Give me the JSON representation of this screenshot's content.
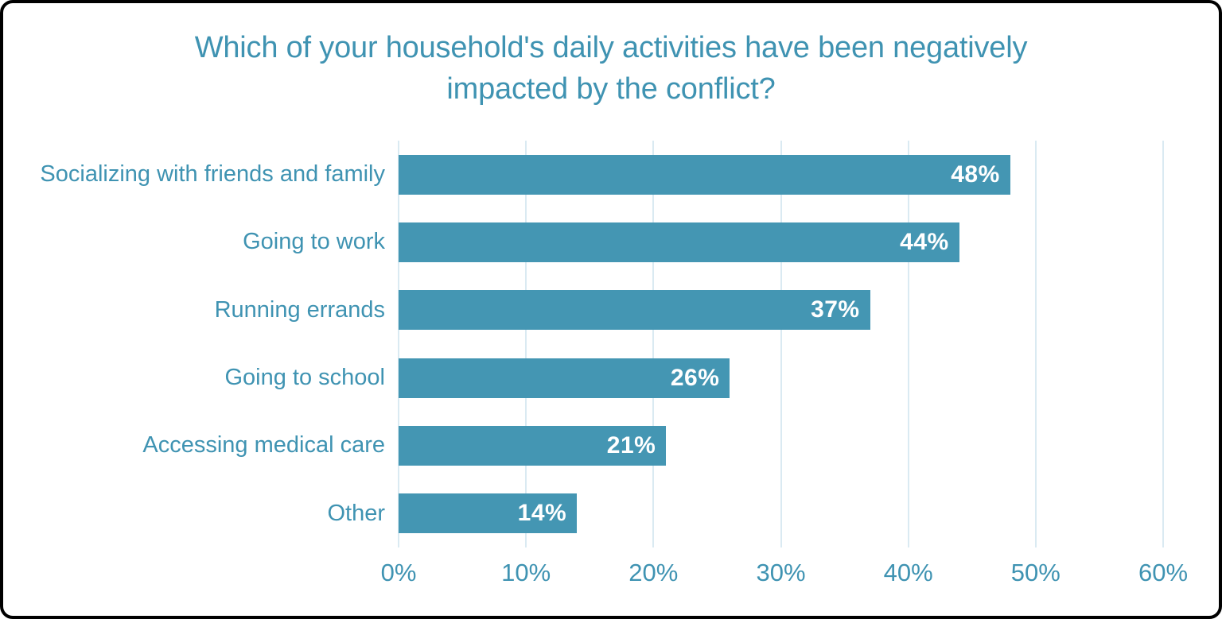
{
  "window": {
    "background": "#ffffff",
    "border_color": "#000000"
  },
  "colors": {
    "bar": "#4496b3",
    "text": "#3f93b2",
    "gridline": "#daeaf2",
    "value_text": "#ffffff",
    "frame_border": "#000000"
  },
  "chart_data": {
    "type": "bar",
    "orientation": "horizontal",
    "title": "Which of your household's daily activities have been negatively impacted by the conflict?",
    "categories": [
      "Socializing with friends and family",
      "Going to work",
      "Running errands",
      "Going to school",
      "Accessing medical care",
      "Other"
    ],
    "values": [
      48,
      44,
      37,
      26,
      21,
      14
    ],
    "value_labels": [
      "48%",
      "44%",
      "37%",
      "26%",
      "21%",
      "14%"
    ],
    "xlabel": "",
    "ylabel": "",
    "xlim": [
      0,
      60
    ],
    "x_ticks": [
      {
        "value": 0,
        "label": "0%"
      },
      {
        "value": 10,
        "label": "10%"
      },
      {
        "value": 20,
        "label": "20%"
      },
      {
        "value": 30,
        "label": "30%"
      },
      {
        "value": 40,
        "label": "40%"
      },
      {
        "value": 50,
        "label": "50%"
      },
      {
        "value": 60,
        "label": "60%"
      }
    ],
    "grid": true,
    "legend": false,
    "bar_labels_inside": true
  }
}
